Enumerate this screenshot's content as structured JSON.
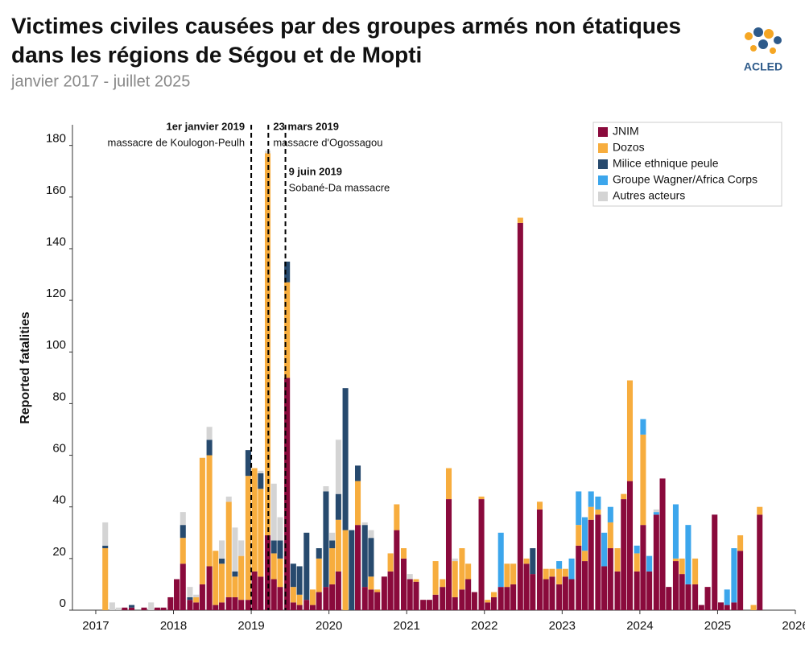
{
  "chart_data": {
    "type": "bar",
    "stacked": true,
    "title": [
      "Victimes civiles causées par des groupes armés non étatiques",
      "dans les régions de Ségou et de Mopti"
    ],
    "subtitle": "janvier 2017 - juillet 2025",
    "logo_text": "ACLED",
    "y_label": "Reported fatalities",
    "xlim": [
      2016.7,
      2026
    ],
    "xticks": [
      2017,
      2018,
      2019,
      2020,
      2021,
      2022,
      2023,
      2024,
      2025,
      2026
    ],
    "ylim": [
      0,
      188
    ],
    "yticks": [
      0,
      20,
      40,
      60,
      80,
      100,
      120,
      140,
      160,
      180
    ],
    "legend": "top-right",
    "annotations": [
      {
        "x": 2019.0,
        "label": "1er janvier 2019",
        "text": "massacre de Koulogon-Peulh"
      },
      {
        "x": 2019.22,
        "label": "23 mars 2019",
        "text": "massacre d'Ogossagou"
      },
      {
        "x": 2019.44,
        "label": "9 juin 2019",
        "text": "Sobané-Da massacre"
      }
    ],
    "x": [
      2017.0,
      2017.08,
      2017.17,
      2017.25,
      2017.33,
      2017.42,
      2017.5,
      2017.58,
      2017.67,
      2017.75,
      2017.83,
      2017.92,
      2018.0,
      2018.08,
      2018.17,
      2018.25,
      2018.33,
      2018.42,
      2018.5,
      2018.58,
      2018.67,
      2018.75,
      2018.83,
      2018.92,
      2019.0,
      2019.08,
      2019.17,
      2019.25,
      2019.33,
      2019.42,
      2019.5,
      2019.58,
      2019.67,
      2019.75,
      2019.83,
      2019.92,
      2020.0,
      2020.08,
      2020.17,
      2020.25,
      2020.33,
      2020.42,
      2020.5,
      2020.58,
      2020.67,
      2020.75,
      2020.83,
      2020.92,
      2021.0,
      2021.08,
      2021.17,
      2021.25,
      2021.33,
      2021.42,
      2021.5,
      2021.58,
      2021.67,
      2021.75,
      2021.83,
      2021.92,
      2022.0,
      2022.08,
      2022.17,
      2022.25,
      2022.33,
      2022.42,
      2022.5,
      2022.58,
      2022.67,
      2022.75,
      2022.83,
      2022.92,
      2023.0,
      2023.08,
      2023.17,
      2023.25,
      2023.33,
      2023.42,
      2023.5,
      2023.58,
      2023.67,
      2023.75,
      2023.83,
      2023.92,
      2024.0,
      2024.08,
      2024.17,
      2024.25,
      2024.33,
      2024.42,
      2024.5,
      2024.58,
      2024.67,
      2024.75,
      2024.83,
      2024.92,
      2025.0,
      2025.08,
      2025.17,
      2025.25,
      2025.33,
      2025.42,
      2025.5
    ],
    "series": [
      {
        "name": "JNIM",
        "color": "#8a0a3c",
        "values": [
          0,
          0,
          0,
          0,
          1,
          1,
          0,
          1,
          0,
          1,
          1,
          5,
          12,
          18,
          4,
          3,
          10,
          17,
          2,
          3,
          5,
          5,
          4,
          4,
          15,
          13,
          29,
          12,
          9,
          90,
          3,
          2,
          4,
          2,
          7,
          9,
          10,
          15,
          0,
          0,
          33,
          9,
          8,
          7,
          13,
          15,
          31,
          20,
          12,
          11,
          4,
          4,
          6,
          9,
          43,
          5,
          8,
          12,
          7,
          43,
          3,
          5,
          9,
          9,
          10,
          150,
          18,
          14,
          39,
          12,
          13,
          10,
          13,
          12,
          25,
          19,
          35,
          37,
          17,
          24,
          15,
          43,
          50,
          15,
          33,
          15,
          37,
          51,
          9,
          19,
          14,
          10,
          10,
          2,
          9,
          37,
          3,
          2,
          3,
          23,
          0,
          0,
          37
        ]
      },
      {
        "name": "Dozos",
        "color": "#f7ad3e",
        "values": [
          0,
          24,
          0,
          0,
          0,
          0,
          0,
          0,
          0,
          0,
          0,
          0,
          0,
          10,
          0,
          2,
          49,
          43,
          21,
          15,
          37,
          8,
          17,
          48,
          40,
          34,
          148,
          10,
          11,
          37,
          6,
          4,
          0,
          6,
          13,
          0,
          14,
          20,
          31,
          0,
          17,
          0,
          5,
          1,
          0,
          7,
          10,
          4,
          0,
          1,
          0,
          0,
          13,
          3,
          12,
          14,
          16,
          6,
          0,
          1,
          1,
          2,
          0,
          9,
          8,
          2,
          2,
          0,
          3,
          4,
          3,
          6,
          3,
          0,
          8,
          4,
          5,
          2,
          0,
          10,
          9,
          2,
          39,
          7,
          35,
          0,
          0,
          0,
          0,
          1,
          6,
          0,
          10,
          0,
          0,
          0,
          0,
          0,
          0,
          6,
          0,
          2,
          3
        ]
      },
      {
        "name": "Milice ethnique peule",
        "color": "#274a6e",
        "values": [
          0,
          1,
          0,
          0,
          0,
          1,
          0,
          0,
          0,
          0,
          0,
          0,
          0,
          5,
          1,
          0,
          0,
          6,
          0,
          2,
          0,
          2,
          0,
          10,
          0,
          6,
          0,
          5,
          7,
          8,
          9,
          11,
          26,
          0,
          4,
          37,
          3,
          10,
          55,
          31,
          6,
          24,
          15,
          0,
          0,
          0,
          0,
          0,
          0,
          0,
          0,
          0,
          0,
          0,
          0,
          0,
          0,
          0,
          0,
          0,
          0,
          0,
          0,
          0,
          0,
          0,
          0,
          10,
          0,
          0,
          0,
          0,
          0,
          0,
          0,
          0,
          0,
          0,
          0,
          0,
          0,
          0,
          0,
          0,
          0,
          0,
          0,
          0,
          0,
          0,
          0,
          0,
          0,
          0,
          0,
          0,
          0,
          0,
          0,
          0,
          0,
          0,
          0
        ]
      },
      {
        "name": "Groupe Wagner/Africa Corps",
        "color": "#3ca6ec",
        "values": [
          0,
          0,
          0,
          0,
          0,
          0,
          0,
          0,
          0,
          0,
          0,
          0,
          0,
          0,
          0,
          0,
          0,
          0,
          0,
          0,
          0,
          0,
          0,
          0,
          0,
          0,
          0,
          0,
          0,
          0,
          0,
          0,
          0,
          0,
          0,
          0,
          0,
          0,
          0,
          0,
          0,
          0,
          0,
          0,
          0,
          0,
          0,
          0,
          0,
          0,
          0,
          0,
          0,
          0,
          0,
          0,
          0,
          0,
          0,
          0,
          0,
          0,
          21,
          0,
          0,
          0,
          0,
          0,
          0,
          0,
          0,
          3,
          0,
          8,
          13,
          13,
          6,
          5,
          13,
          6,
          0,
          0,
          0,
          3,
          6,
          6,
          1,
          0,
          0,
          21,
          0,
          23,
          0,
          0,
          0,
          0,
          0,
          6,
          21,
          0,
          0,
          0,
          0
        ]
      },
      {
        "name": "Autres acteurs",
        "color": "#d4d4d4",
        "values": [
          0,
          9,
          3,
          1,
          0,
          0,
          0,
          0,
          3,
          0,
          0,
          0,
          0,
          5,
          4,
          1,
          0,
          5,
          0,
          7,
          2,
          17,
          6,
          0,
          0,
          1,
          1,
          22,
          9,
          0,
          0,
          0,
          0,
          0,
          0,
          2,
          3,
          21,
          0,
          0,
          0,
          1,
          3,
          0,
          0,
          0,
          0,
          0,
          2,
          0,
          0,
          0,
          0,
          0,
          0,
          1,
          0,
          0,
          0,
          0,
          0,
          0,
          0,
          0,
          0,
          0,
          0,
          0,
          0,
          0,
          0,
          0,
          0,
          0,
          0,
          0,
          0,
          0,
          0,
          0,
          0,
          0,
          0,
          0,
          0,
          0,
          1,
          0,
          0,
          0,
          0,
          0,
          0,
          0,
          0,
          0,
          0,
          0,
          0,
          0,
          0,
          0,
          0
        ]
      }
    ]
  }
}
